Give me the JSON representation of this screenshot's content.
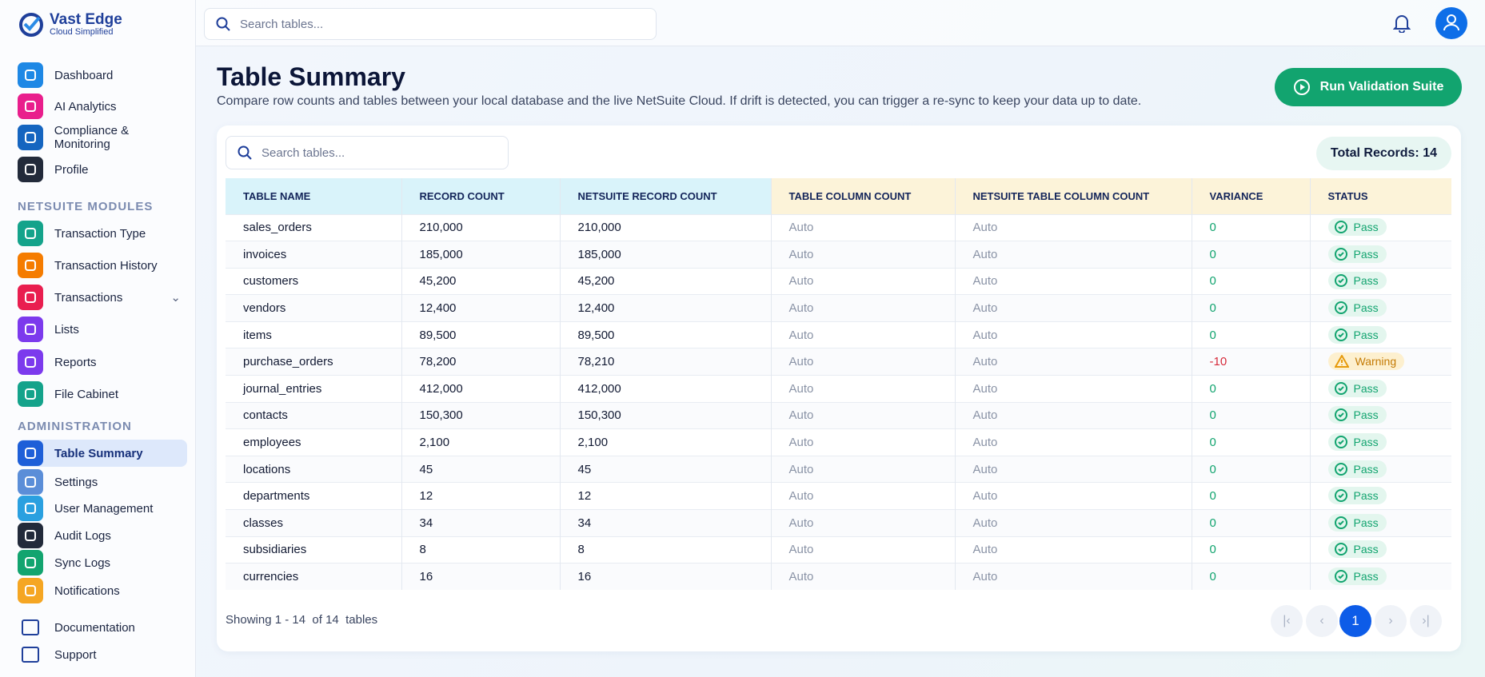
{
  "brand": {
    "name": "Vast Edge",
    "tagline": "Cloud Simplified"
  },
  "topbar": {
    "search_placeholder": "Search tables..."
  },
  "sidebar": {
    "main": [
      "Dashboard",
      "AI Analytics",
      "Compliance & Monitoring",
      "Profile"
    ],
    "netsuite_heading": "NETSUITE MODULES",
    "netsuite": [
      "Transaction Type",
      "Transaction History",
      "Transactions",
      "Lists",
      "Reports",
      "File Cabinet"
    ],
    "admin_heading": "ADMINISTRATION",
    "admin": [
      "Table Summary",
      "Settings",
      "User Management",
      "Audit Logs",
      "Sync Logs",
      "Notifications"
    ],
    "footer": [
      "Documentation",
      "Support"
    ]
  },
  "header": {
    "title": "Table Summary",
    "subtitle": "Compare row counts and tables between your local database and the live NetSuite Cloud. If drift is detected, you can trigger a re-sync to keep your data up to date.",
    "button": "Run Validation Suite"
  },
  "card": {
    "search_placeholder": "Search tables...",
    "total": "Total Records: 14"
  },
  "table": {
    "columns": [
      "TABLE NAME",
      "RECORD COUNT",
      "NETSUITE RECORD COUNT",
      "TABLE COLUMN COUNT",
      "NETSUITE TABLE COLUMN COUNT",
      "VARIANCE",
      "STATUS"
    ],
    "rows": [
      [
        "sales_orders",
        "210,000",
        "210,000",
        "Auto",
        "Auto",
        "0",
        "Pass"
      ],
      [
        "invoices",
        "185,000",
        "185,000",
        "Auto",
        "Auto",
        "0",
        "Pass"
      ],
      [
        "customers",
        "45,200",
        "45,200",
        "Auto",
        "Auto",
        "0",
        "Pass"
      ],
      [
        "vendors",
        "12,400",
        "12,400",
        "Auto",
        "Auto",
        "0",
        "Pass"
      ],
      [
        "items",
        "89,500",
        "89,500",
        "Auto",
        "Auto",
        "0",
        "Pass"
      ],
      [
        "purchase_orders",
        "78,200",
        "78,210",
        "Auto",
        "Auto",
        "-10",
        "Warning"
      ],
      [
        "journal_entries",
        "412,000",
        "412,000",
        "Auto",
        "Auto",
        "0",
        "Pass"
      ],
      [
        "contacts",
        "150,300",
        "150,300",
        "Auto",
        "Auto",
        "0",
        "Pass"
      ],
      [
        "employees",
        "2,100",
        "2,100",
        "Auto",
        "Auto",
        "0",
        "Pass"
      ],
      [
        "locations",
        "45",
        "45",
        "Auto",
        "Auto",
        "0",
        "Pass"
      ],
      [
        "departments",
        "12",
        "12",
        "Auto",
        "Auto",
        "0",
        "Pass"
      ],
      [
        "classes",
        "34",
        "34",
        "Auto",
        "Auto",
        "0",
        "Pass"
      ],
      [
        "subsidiaries",
        "8",
        "8",
        "Auto",
        "Auto",
        "0",
        "Pass"
      ],
      [
        "currencies",
        "16",
        "16",
        "Auto",
        "Auto",
        "0",
        "Pass"
      ]
    ]
  },
  "footer": {
    "showing": "Showing 1 - 14  of 14  tables",
    "page": "1"
  }
}
